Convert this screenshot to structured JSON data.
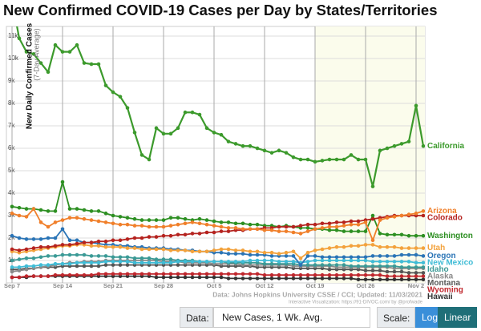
{
  "chart_data": {
    "type": "line",
    "title": "New Confirmed COVID-19 Cases per Day by States/Territories",
    "y_label": "New Daily Confirmed Cases",
    "y_sublabel": "(7-Day Average)",
    "source": "Data: Johns Hopkins University CSSE / CCI; Updated: 11/03/2021",
    "credit": "Interactive Visualization: https://91-DIVOC.com/ by @profwade",
    "log_scale": false,
    "grid": true,
    "categories": [
      "Sep 7",
      null,
      null,
      null,
      null,
      null,
      null,
      "Sep 14",
      null,
      null,
      null,
      null,
      null,
      null,
      "Sep 21",
      null,
      null,
      null,
      null,
      null,
      null,
      "Sep 28",
      null,
      null,
      null,
      null,
      null,
      null,
      "Oct 5",
      null,
      null,
      null,
      null,
      null,
      null,
      "Oct 12",
      null,
      null,
      null,
      null,
      null,
      null,
      "Oct 19",
      null,
      null,
      null,
      null,
      null,
      null,
      "Oct 26",
      null,
      null,
      null,
      null,
      null,
      null,
      "Nov 2",
      null
    ],
    "ylim": [
      0,
      11430
    ],
    "yticks": [
      {
        "value": 1000,
        "label": "1k"
      },
      {
        "value": 2000,
        "label": "2k"
      },
      {
        "value": 3000,
        "label": "3k"
      },
      {
        "value": 4000,
        "label": "4k"
      },
      {
        "value": 5000,
        "label": "5k"
      },
      {
        "value": 6000,
        "label": "6k"
      },
      {
        "value": 7000,
        "label": "7k"
      },
      {
        "value": 8000,
        "label": "8k"
      },
      {
        "value": 9000,
        "label": "9k"
      },
      {
        "value": 10000,
        "label": "10k"
      },
      {
        "value": 11000,
        "label": "11k"
      }
    ],
    "series": [
      {
        "name": "California",
        "color": "#3c9a2c",
        "values": [
          12600,
          10900,
          10300,
          10200,
          9800,
          9400,
          10600,
          10300,
          10300,
          10600,
          9800,
          9750,
          9750,
          8800,
          8500,
          8300,
          7800,
          6700,
          5700,
          5500,
          6900,
          6650,
          6650,
          6900,
          7600,
          7600,
          7500,
          6900,
          6700,
          6600,
          6300,
          6200,
          6100,
          6100,
          6000,
          5900,
          5800,
          5900,
          5800,
          5600,
          5500,
          5500,
          5400,
          5450,
          5500,
          5500,
          5500,
          5700,
          5500,
          5500,
          4300,
          5900,
          6000,
          6100,
          6200,
          6300,
          7900,
          6100
        ]
      },
      {
        "name": "Arizona",
        "color": "#f07f2a",
        "values": [
          3100,
          3000,
          2950,
          3300,
          2700,
          2500,
          2700,
          2800,
          2900,
          2900,
          2850,
          2800,
          2750,
          2700,
          2650,
          2600,
          2600,
          2550,
          2550,
          2500,
          2500,
          2500,
          2550,
          2600,
          2650,
          2700,
          2650,
          2600,
          2550,
          2500,
          2450,
          2450,
          2400,
          2400,
          2400,
          2350,
          2350,
          2300,
          2300,
          2250,
          2200,
          2300,
          2400,
          2450,
          2500,
          2500,
          2550,
          2600,
          2600,
          2700,
          1900,
          2800,
          2900,
          2950,
          3000,
          3050,
          3100,
          3200
        ]
      },
      {
        "name": "Colorado",
        "color": "#b5231f",
        "values": [
          1500,
          1450,
          1500,
          1550,
          1600,
          1600,
          1650,
          1700,
          1700,
          1750,
          1800,
          1800,
          1850,
          1850,
          1900,
          1900,
          1950,
          2000,
          2000,
          2050,
          2050,
          2100,
          2100,
          2150,
          2150,
          2200,
          2200,
          2250,
          2250,
          2300,
          2300,
          2350,
          2350,
          2400,
          2400,
          2450,
          2450,
          2500,
          2500,
          2500,
          2550,
          2600,
          2600,
          2650,
          2650,
          2700,
          2700,
          2750,
          2750,
          2800,
          2850,
          2900,
          2950,
          3000,
          3000,
          3000,
          3000,
          3000
        ]
      },
      {
        "name": "Washington",
        "color": "#2d8f22",
        "values": [
          3400,
          3350,
          3300,
          3300,
          3250,
          3200,
          3200,
          4500,
          3300,
          3300,
          3250,
          3200,
          3200,
          3100,
          3000,
          2950,
          2900,
          2850,
          2800,
          2800,
          2800,
          2800,
          2900,
          2900,
          2850,
          2800,
          2850,
          2800,
          2750,
          2700,
          2700,
          2650,
          2650,
          2600,
          2600,
          2550,
          2550,
          2500,
          2550,
          2500,
          2450,
          2450,
          2400,
          2400,
          2350,
          2350,
          2300,
          2300,
          2300,
          2300,
          3000,
          2200,
          2150,
          2150,
          2150,
          2100,
          2100,
          2100
        ]
      },
      {
        "name": "Utah",
        "color": "#f3a23c",
        "values": [
          1400,
          1350,
          1400,
          1450,
          1500,
          1550,
          1600,
          1650,
          1650,
          1700,
          1700,
          1650,
          1650,
          1600,
          1600,
          1600,
          1550,
          1550,
          1500,
          1500,
          1500,
          1500,
          1450,
          1450,
          1450,
          1400,
          1400,
          1400,
          1450,
          1500,
          1500,
          1450,
          1450,
          1400,
          1400,
          1350,
          1350,
          1300,
          1350,
          1400,
          1100,
          1350,
          1450,
          1500,
          1550,
          1600,
          1600,
          1650,
          1650,
          1700,
          1700,
          1600,
          1600,
          1600,
          1550,
          1550,
          1550,
          1550
        ]
      },
      {
        "name": "Oregon",
        "color": "#2a74b6",
        "values": [
          2100,
          2000,
          1950,
          1950,
          1950,
          2000,
          2000,
          2400,
          1900,
          1900,
          1800,
          1800,
          1750,
          1700,
          1700,
          1650,
          1650,
          1600,
          1600,
          1550,
          1550,
          1550,
          1500,
          1500,
          1450,
          1450,
          1400,
          1400,
          1350,
          1350,
          1300,
          1300,
          1300,
          1250,
          1250,
          1250,
          1200,
          1200,
          1200,
          1200,
          800,
          1200,
          1200,
          1150,
          1150,
          1150,
          1150,
          1150,
          1150,
          1150,
          1200,
          1200,
          1200,
          1200,
          1250,
          1250,
          1250,
          1200
        ]
      },
      {
        "name": "New Mexico",
        "color": "#3fbcd6",
        "values": [
          700,
          700,
          750,
          750,
          800,
          800,
          850,
          850,
          850,
          900,
          900,
          900,
          900,
          950,
          950,
          950,
          950,
          900,
          900,
          900,
          900,
          900,
          900,
          950,
          950,
          950,
          950,
          950,
          950,
          950,
          950,
          950,
          950,
          1000,
          1000,
          1000,
          1000,
          950,
          950,
          950,
          900,
          950,
          1000,
          1000,
          1000,
          1000,
          1000,
          1000,
          1000,
          1000,
          950,
          950,
          950,
          950,
          950,
          950,
          900,
          900
        ]
      },
      {
        "name": "Idaho",
        "color": "#3b9a96",
        "values": [
          1000,
          1050,
          1100,
          1100,
          1150,
          1200,
          1200,
          1250,
          1250,
          1250,
          1250,
          1200,
          1200,
          1200,
          1150,
          1150,
          1150,
          1100,
          1100,
          1100,
          1050,
          1050,
          1050,
          1000,
          1000,
          1000,
          950,
          950,
          950,
          950,
          900,
          900,
          900,
          900,
          900,
          850,
          850,
          850,
          850,
          850,
          800,
          800,
          800,
          800,
          800,
          800,
          800,
          750,
          750,
          750,
          750,
          750,
          750,
          750,
          700,
          700,
          700,
          700
        ]
      },
      {
        "name": "Alaska",
        "color": "#8a8a8a",
        "values": [
          500,
          550,
          600,
          650,
          700,
          750,
          800,
          850,
          900,
          900,
          950,
          950,
          950,
          1000,
          1000,
          1000,
          1000,
          1000,
          1000,
          1000,
          1000,
          950,
          950,
          950,
          900,
          900,
          900,
          900,
          850,
          850,
          850,
          850,
          800,
          800,
          800,
          800,
          800,
          800,
          800,
          750,
          750,
          750,
          750,
          750,
          750,
          700,
          700,
          700,
          700,
          700,
          700,
          700,
          700,
          650,
          650,
          650,
          650,
          650
        ]
      },
      {
        "name": "Montana",
        "color": "#555555",
        "values": [
          600,
          600,
          650,
          650,
          700,
          700,
          700,
          750,
          750,
          750,
          750,
          750,
          750,
          800,
          800,
          800,
          800,
          800,
          800,
          800,
          800,
          800,
          800,
          800,
          800,
          800,
          800,
          800,
          800,
          750,
          750,
          750,
          750,
          750,
          700,
          700,
          700,
          700,
          700,
          650,
          650,
          650,
          650,
          650,
          600,
          600,
          600,
          600,
          600,
          550,
          550,
          550,
          500,
          500,
          500,
          450,
          450,
          450
        ]
      },
      {
        "name": "Wyoming",
        "color": "#c0272d",
        "values": [
          250,
          250,
          300,
          300,
          300,
          300,
          350,
          350,
          350,
          350,
          350,
          350,
          400,
          400,
          400,
          400,
          400,
          400,
          400,
          400,
          400,
          400,
          400,
          400,
          400,
          400,
          400,
          400,
          400,
          400,
          400,
          400,
          400,
          400,
          400,
          350,
          350,
          350,
          350,
          350,
          350,
          350,
          350,
          350,
          350,
          350,
          350,
          350,
          350,
          350,
          350,
          350,
          300,
          300,
          300,
          300,
          300,
          300
        ]
      },
      {
        "name": "Hawaii",
        "color": "#333333",
        "values": [
          250,
          250,
          250,
          300,
          300,
          300,
          300,
          300,
          300,
          300,
          300,
          300,
          300,
          300,
          300,
          300,
          300,
          300,
          300,
          300,
          250,
          250,
          250,
          250,
          250,
          250,
          250,
          250,
          250,
          250,
          200,
          200,
          200,
          200,
          200,
          200,
          200,
          200,
          200,
          200,
          200,
          200,
          200,
          200,
          200,
          200,
          200,
          200,
          150,
          150,
          150,
          150,
          150,
          150,
          150,
          150,
          150,
          150
        ]
      }
    ]
  },
  "controls": {
    "data_label": "Data:",
    "data_choice": "New Cases, 1 Wk. Avg.",
    "scale_label": "Scale:",
    "log": "Log",
    "linear": "Linear"
  }
}
